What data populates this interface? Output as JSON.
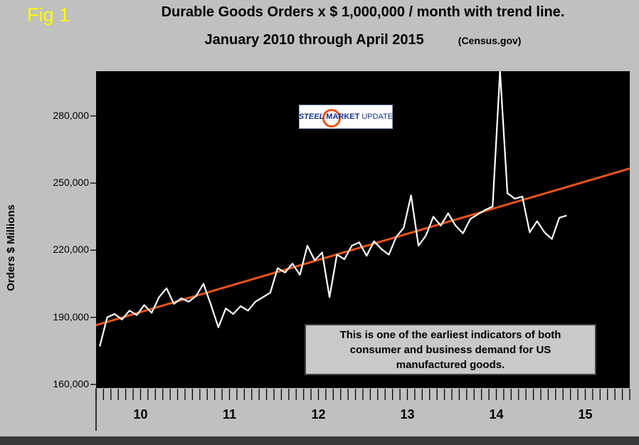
{
  "figure_label": "Fig 1",
  "title": {
    "line1": "Durable Goods Orders x $ 1,000,000 / month with trend line.",
    "line2": "January 2010 through April 2015",
    "source": "(Census.gov)"
  },
  "y_axis": {
    "label": "Orders $ Millions"
  },
  "logo": {
    "steel": "STEEL",
    "market": "MARKET",
    "update": "UPDATE"
  },
  "annotation": {
    "line1": "This is one of the earliest indicators of both",
    "line2": "consumer and business demand for US",
    "line3": "manufactured goods."
  },
  "colors": {
    "page_background": "#c0c0c0",
    "plot_background": "#000000",
    "data_line": "#ffffff",
    "trend_line": "#e8531a",
    "fig_label": "#ffff00",
    "annotation_background": "#c9c9c9",
    "bottom_bar": "#383838"
  },
  "chart_data": {
    "type": "line",
    "title": "Durable Goods Orders x $ 1,000,000 / month with trend line. January 2010 through April 2015",
    "source": "Census.gov",
    "xlabel": "",
    "ylabel": "Orders $ Millions",
    "grid": false,
    "legend_position": "none",
    "x_axis_span_months": 72,
    "year_labels": [
      "10",
      "11",
      "12",
      "13",
      "14",
      "15"
    ],
    "ylim": [
      158400,
      300000
    ],
    "y_ticks": [
      {
        "value": 160000,
        "label": "160,000"
      },
      {
        "value": 190000,
        "label": "190,000"
      },
      {
        "value": 220000,
        "label": "220,000"
      },
      {
        "value": 250000,
        "label": "250,000"
      },
      {
        "value": 280000,
        "label": "280,000"
      }
    ],
    "x_months": [
      "2010-01",
      "2010-02",
      "2010-03",
      "2010-04",
      "2010-05",
      "2010-06",
      "2010-07",
      "2010-08",
      "2010-09",
      "2010-10",
      "2010-11",
      "2010-12",
      "2011-01",
      "2011-02",
      "2011-03",
      "2011-04",
      "2011-05",
      "2011-06",
      "2011-07",
      "2011-08",
      "2011-09",
      "2011-10",
      "2011-11",
      "2011-12",
      "2012-01",
      "2012-02",
      "2012-03",
      "2012-04",
      "2012-05",
      "2012-06",
      "2012-07",
      "2012-08",
      "2012-09",
      "2012-10",
      "2012-11",
      "2012-12",
      "2013-01",
      "2013-02",
      "2013-03",
      "2013-04",
      "2013-05",
      "2013-06",
      "2013-07",
      "2013-08",
      "2013-09",
      "2013-10",
      "2013-11",
      "2013-12",
      "2014-01",
      "2014-02",
      "2014-03",
      "2014-04",
      "2014-05",
      "2014-06",
      "2014-07",
      "2014-08",
      "2014-09",
      "2014-10",
      "2014-11",
      "2014-12",
      "2015-01",
      "2015-02",
      "2015-03",
      "2015-04"
    ],
    "series": [
      {
        "name": "Durable Goods Orders ($ millions)",
        "color": "#ffffff",
        "values": [
          177000,
          190000,
          191500,
          189000,
          193000,
          191000,
          195500,
          192000,
          199000,
          203000,
          196000,
          198500,
          197000,
          199500,
          205000,
          195500,
          185500,
          194000,
          191500,
          195000,
          193000,
          197000,
          199000,
          201000,
          212000,
          210000,
          214000,
          209000,
          222000,
          215500,
          219000,
          199000,
          218000,
          216000,
          222000,
          223500,
          217500,
          224000,
          220500,
          218000,
          226000,
          230000,
          244500,
          222000,
          226500,
          235000,
          231000,
          236500,
          231000,
          227500,
          234000,
          236000,
          238000,
          239500,
          300000,
          245500,
          243000,
          244000,
          228000,
          233000,
          228000,
          225000,
          234500,
          235500
        ]
      }
    ],
    "trend_line": {
      "name": "linear trend",
      "color": "#e8531a",
      "start_value": 186500,
      "end_value": 256500
    }
  }
}
